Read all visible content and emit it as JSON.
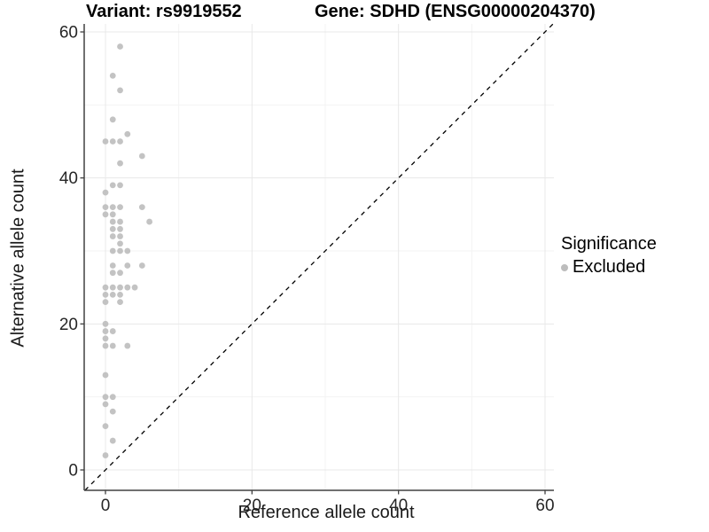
{
  "header": {
    "variant_title": "Variant: rs9919552",
    "gene_title": "Gene: SDHD (ENSG00000204370)"
  },
  "legend": {
    "title": "Significance",
    "items": [
      {
        "label": "Excluded",
        "color": "#bdbdbd"
      }
    ]
  },
  "chart_data": {
    "type": "scatter",
    "title_left": "Variant: rs9919552",
    "title_right": "Gene: SDHD (ENSG00000204370)",
    "xlabel": "Reference allele count",
    "ylabel": "Alternative allele count",
    "xlim": [
      -3,
      61.5
    ],
    "ylim": [
      -3,
      61.5
    ],
    "x_ticks": [
      0,
      20,
      40,
      60
    ],
    "y_ticks": [
      0,
      20,
      40,
      60
    ],
    "minor_ticks": [
      10,
      30,
      50
    ],
    "grid": true,
    "legend_position": "right",
    "identity_line": {
      "style": "dashed",
      "color": "#000000",
      "slope": 1,
      "intercept": 0
    },
    "series": [
      {
        "name": "Excluded",
        "color": "#bdbdbd",
        "points": [
          [
            2,
            58
          ],
          [
            1,
            54
          ],
          [
            2,
            52
          ],
          [
            1,
            48
          ],
          [
            3,
            46
          ],
          [
            0,
            45
          ],
          [
            1,
            45
          ],
          [
            2,
            45
          ],
          [
            5,
            43
          ],
          [
            2,
            42
          ],
          [
            1,
            39
          ],
          [
            2,
            39
          ],
          [
            0,
            38
          ],
          [
            0,
            36
          ],
          [
            1,
            36
          ],
          [
            2,
            36
          ],
          [
            5,
            36
          ],
          [
            0,
            35
          ],
          [
            1,
            35
          ],
          [
            1,
            34
          ],
          [
            2,
            34
          ],
          [
            6,
            34
          ],
          [
            1,
            33
          ],
          [
            2,
            33
          ],
          [
            1,
            32
          ],
          [
            2,
            32
          ],
          [
            2,
            31
          ],
          [
            1,
            30
          ],
          [
            2,
            30
          ],
          [
            3,
            30
          ],
          [
            1,
            28
          ],
          [
            3,
            28
          ],
          [
            5,
            28
          ],
          [
            1,
            27
          ],
          [
            2,
            27
          ],
          [
            0,
            25
          ],
          [
            1,
            25
          ],
          [
            2,
            25
          ],
          [
            3,
            25
          ],
          [
            4,
            25
          ],
          [
            0,
            24
          ],
          [
            1,
            24
          ],
          [
            2,
            24
          ],
          [
            0,
            23
          ],
          [
            2,
            23
          ],
          [
            0,
            20
          ],
          [
            0,
            19
          ],
          [
            1,
            19
          ],
          [
            0,
            18
          ],
          [
            0,
            17
          ],
          [
            1,
            17
          ],
          [
            3,
            17
          ],
          [
            0,
            13
          ],
          [
            0,
            10
          ],
          [
            1,
            10
          ],
          [
            0,
            9
          ],
          [
            1,
            8
          ],
          [
            0,
            6
          ],
          [
            1,
            4
          ],
          [
            0,
            2
          ]
        ]
      }
    ],
    "colors": {
      "point": "#bdbdbd",
      "grid_major": "#e8e8e8",
      "grid_minor": "#f3f3f3",
      "axis_line": "#404040",
      "tick_text": "#262626",
      "background": "#ffffff"
    }
  }
}
